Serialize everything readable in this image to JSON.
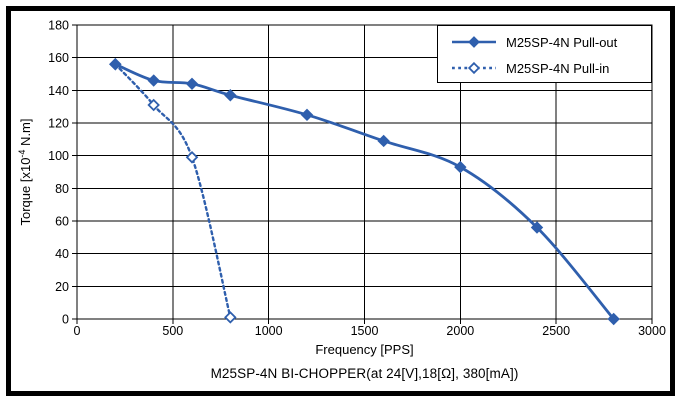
{
  "figure": {
    "background": "#ffffff",
    "frame_color": "#000000",
    "text_color": "#000000"
  },
  "chart_data": {
    "type": "line",
    "title": "",
    "xlabel": "Frequency [PPS]",
    "ylabel": "Torque [x10⁻⁴ N.m]",
    "ylabel_parts": {
      "prefix": "Torque [x10",
      "superscript": "-4",
      "suffix": " N.m]"
    },
    "caption": "M25SP-4N BI-CHOPPER(at 24[V],18[Ω], 380[mA])",
    "xlim": [
      0,
      3000
    ],
    "ylim": [
      0,
      180
    ],
    "x_ticks": [
      0,
      500,
      1000,
      1500,
      2000,
      2500,
      3000
    ],
    "y_ticks": [
      0,
      20,
      40,
      60,
      80,
      100,
      120,
      140,
      160,
      180
    ],
    "grid": true,
    "grid_color": "#000000",
    "legend_position": "top-right",
    "series": [
      {
        "name": "M25SP-4N Pull-out",
        "slug": "pull-out",
        "style": "solid",
        "marker": "filled-diamond",
        "color": "#2f5fad",
        "x": [
          200,
          400,
          600,
          800,
          1200,
          1600,
          2000,
          2400,
          2800
        ],
        "y": [
          156,
          146,
          144,
          137,
          125,
          109,
          93,
          56,
          0
        ]
      },
      {
        "name": "M25SP-4N Pull-in",
        "slug": "pull-in",
        "style": "dashed",
        "marker": "open-diamond",
        "color": "#2f5fad",
        "x": [
          200,
          400,
          600,
          800
        ],
        "y": [
          156,
          131,
          99,
          1
        ]
      }
    ]
  }
}
